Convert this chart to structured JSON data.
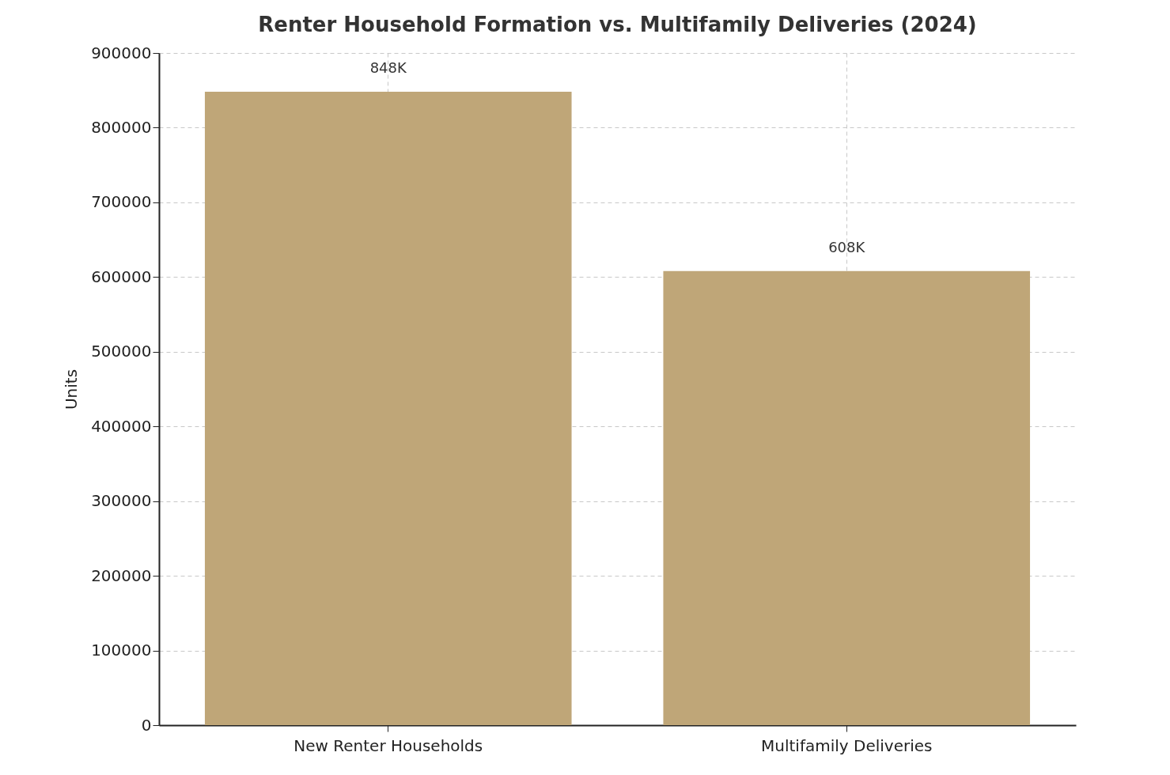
{
  "chart_data": {
    "type": "bar",
    "title": "Renter Household Formation vs. Multifamily Deliveries (2024)",
    "ylabel": "Units",
    "categories": [
      "New Renter Households",
      "Multifamily Deliveries"
    ],
    "values": [
      848000,
      608000
    ],
    "value_labels": [
      "848K",
      "608K"
    ],
    "color": "#bfa678",
    "ylim": [
      0,
      900000
    ],
    "yticks": [
      0,
      100000,
      200000,
      300000,
      400000,
      500000,
      600000,
      700000,
      800000,
      900000
    ],
    "grid": true
  }
}
